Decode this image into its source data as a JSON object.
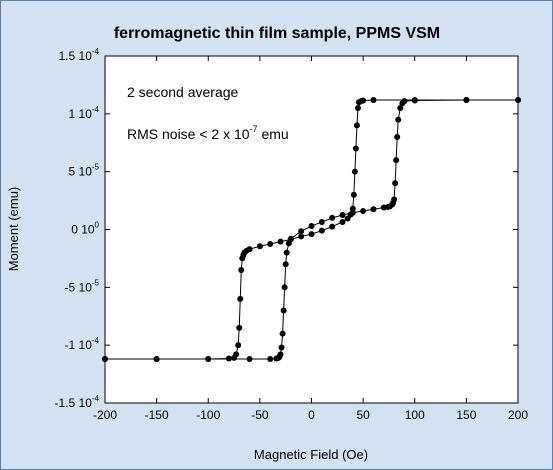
{
  "chart_data": {
    "type": "scatter",
    "title": "ferromagnetic thin film sample, PPMS VSM",
    "xlabel": "Magnetic Field (Oe)",
    "ylabel": "Moment (emu)",
    "xlim": [
      -200,
      200
    ],
    "ylim": [
      -0.00015,
      0.00015
    ],
    "x_ticks": [
      -200,
      -150,
      -100,
      -50,
      0,
      50,
      100,
      150,
      200
    ],
    "x_tick_labels": [
      "-200",
      "-150",
      "-100",
      "-50",
      "0",
      "50",
      "100",
      "150",
      "200"
    ],
    "y_ticks": [
      0.00015,
      0.0001,
      5e-05,
      0,
      -5e-05,
      -0.0001,
      -0.00015
    ],
    "y_tick_labels": [
      {
        "mantissa": "1.5 10",
        "exp": "-4"
      },
      {
        "mantissa": "1 10",
        "exp": "-4"
      },
      {
        "mantissa": "5 10",
        "exp": "-5"
      },
      {
        "mantissa": "0 10",
        "exp": "0"
      },
      {
        "mantissa": "-5 10",
        "exp": "-5"
      },
      {
        "mantissa": "-1 10",
        "exp": "-4"
      },
      {
        "mantissa": "-1.5 10",
        "exp": "-4"
      }
    ],
    "annotations": [
      {
        "text": "2 second average"
      },
      {
        "text": "RMS noise < 2 x 10",
        "exp": "-7",
        "suffix": " emu"
      }
    ],
    "grid": false,
    "marker_color": "#000000",
    "series": [
      {
        "x": [
          200,
          150,
          100,
          90,
          88,
          86,
          84,
          83,
          82,
          81,
          80,
          79,
          78,
          76,
          74,
          70,
          60,
          50,
          40,
          30,
          20,
          10,
          0,
          -10,
          -20,
          -22,
          -24,
          -25,
          -26,
          -27,
          -28,
          -29,
          -30,
          -31,
          -32,
          -34,
          -40,
          -60,
          -100,
          -150,
          -200
        ],
        "y": [
          0.000112,
          0.000112,
          0.0001115,
          0.000111,
          0.000109,
          0.000105,
          9.5e-05,
          8e-05,
          6e-05,
          4e-05,
          2.6e-05,
          2.3e-05,
          2.15e-05,
          2e-05,
          1.95e-05,
          1.9e-05,
          1.75e-05,
          1.6e-05,
          1.45e-05,
          1.25e-05,
          1e-05,
          6.5e-06,
          3e-06,
          -1.5e-06,
          -8e-06,
          -1.2e-05,
          -2e-05,
          -3e-05,
          -5e-05,
          -7e-05,
          -9e-05,
          -0.000102,
          -0.000108,
          -0.00011,
          -0.000111,
          -0.0001115,
          -0.000112,
          -0.000112,
          -0.000112,
          -0.000112,
          -0.000112
        ]
      },
      {
        "x": [
          -200,
          -150,
          -100,
          -80,
          -75,
          -73,
          -71,
          -70,
          -69,
          -68,
          -67,
          -66,
          -65,
          -63,
          -60,
          -50,
          -40,
          -30,
          -20,
          -10,
          0,
          10,
          20,
          30,
          35,
          38,
          40,
          41,
          42,
          43,
          44,
          45,
          46,
          48,
          50,
          60,
          100,
          150,
          200
        ],
        "y": [
          -0.000112,
          -0.000112,
          -0.000112,
          -0.0001115,
          -0.000111,
          -0.000108,
          -0.0001,
          -8.5e-05,
          -6e-05,
          -3.5e-05,
          -2.5e-05,
          -2.2e-05,
          -2e-05,
          -1.85e-05,
          -1.7e-05,
          -1.45e-05,
          -1.25e-05,
          -1.05e-05,
          -8.5e-06,
          -6e-06,
          -4e-06,
          -1e-06,
          2.5e-06,
          6.5e-06,
          9.5e-06,
          1.3e-05,
          1.8e-05,
          3e-05,
          5e-05,
          7e-05,
          9e-05,
          0.000105,
          0.00011,
          0.000111,
          0.0001115,
          0.000112,
          0.000112,
          0.000112,
          0.000112
        ]
      }
    ]
  }
}
